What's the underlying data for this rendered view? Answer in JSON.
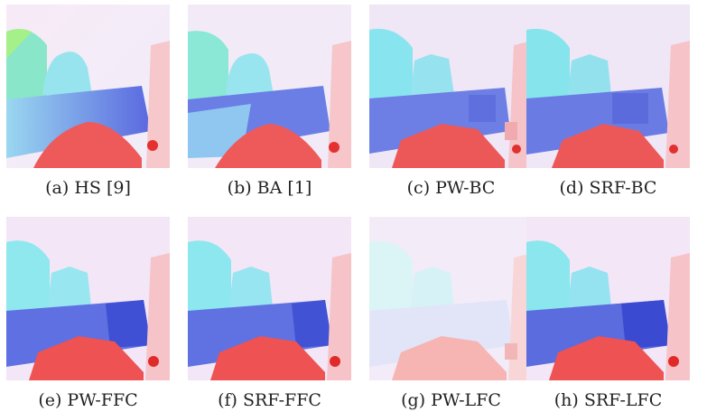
{
  "panels": [
    {
      "caption": "(a) HS [9]",
      "variant": "smooth"
    },
    {
      "caption": "(b) BA [1]",
      "variant": "smooth"
    },
    {
      "caption": "(c) PW-BC",
      "variant": "blocky"
    },
    {
      "caption": "(d) SRF-BC",
      "variant": "blocky"
    },
    {
      "caption": "(e) PW-FFC",
      "variant": "sharp"
    },
    {
      "caption": "(f) SRF-FFC",
      "variant": "sharp"
    },
    {
      "caption": "(g) PW-LFC",
      "variant": "faded"
    },
    {
      "caption": "(h) SRF-LFC",
      "variant": "sharp"
    }
  ],
  "colors": {
    "sky": "#f3e8f6",
    "cyan": "#8fe6ec",
    "blue_band": "#6f82e8",
    "blue_dark": "#3d4fd6",
    "red": "#ee5b57",
    "pink_wall": "#f7c2c6",
    "green_edge": "#9cf0a0"
  }
}
